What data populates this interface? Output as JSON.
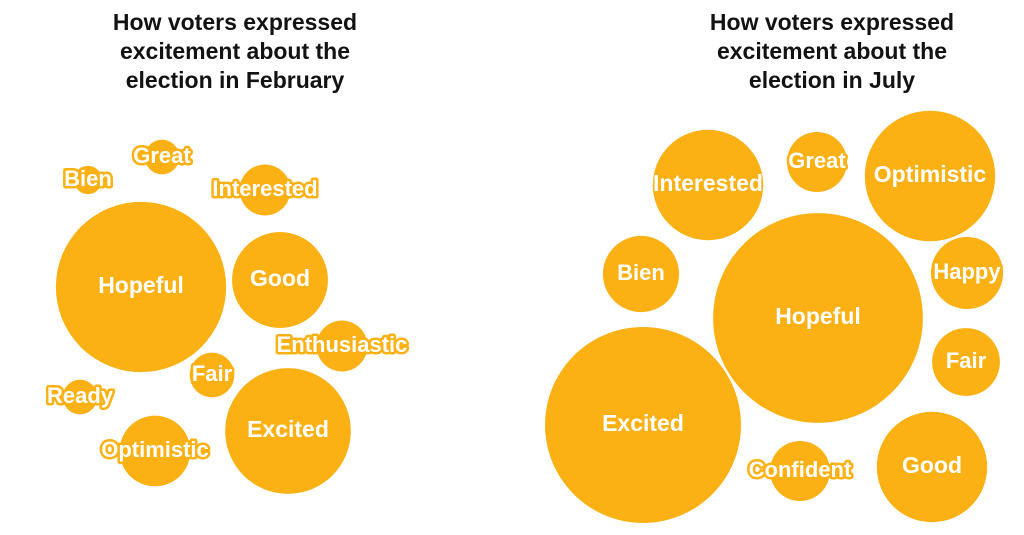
{
  "chart_data": [
    {
      "type": "bubble",
      "title": "How voters expressed excitement about the election in February",
      "color": "#fbb114",
      "categories": [
        "Hopeful",
        "Good",
        "Excited",
        "Interested",
        "Great",
        "Bien",
        "Enthusiastic",
        "Fair",
        "Ready",
        "Optimistic"
      ],
      "values": [
        145,
        46,
        79,
        13,
        6,
        4,
        13,
        10,
        6,
        25
      ]
    },
    {
      "type": "bubble",
      "title": "How voters expressed excitement about the election in July",
      "color": "#fbb114",
      "categories": [
        "Hopeful",
        "Excited",
        "Interested",
        "Great",
        "Optimistic",
        "Bien",
        "Happy",
        "Fair",
        "Good",
        "Confident"
      ],
      "values": [
        220,
        192,
        61,
        18,
        85,
        29,
        26,
        23,
        61,
        18
      ]
    }
  ]
}
